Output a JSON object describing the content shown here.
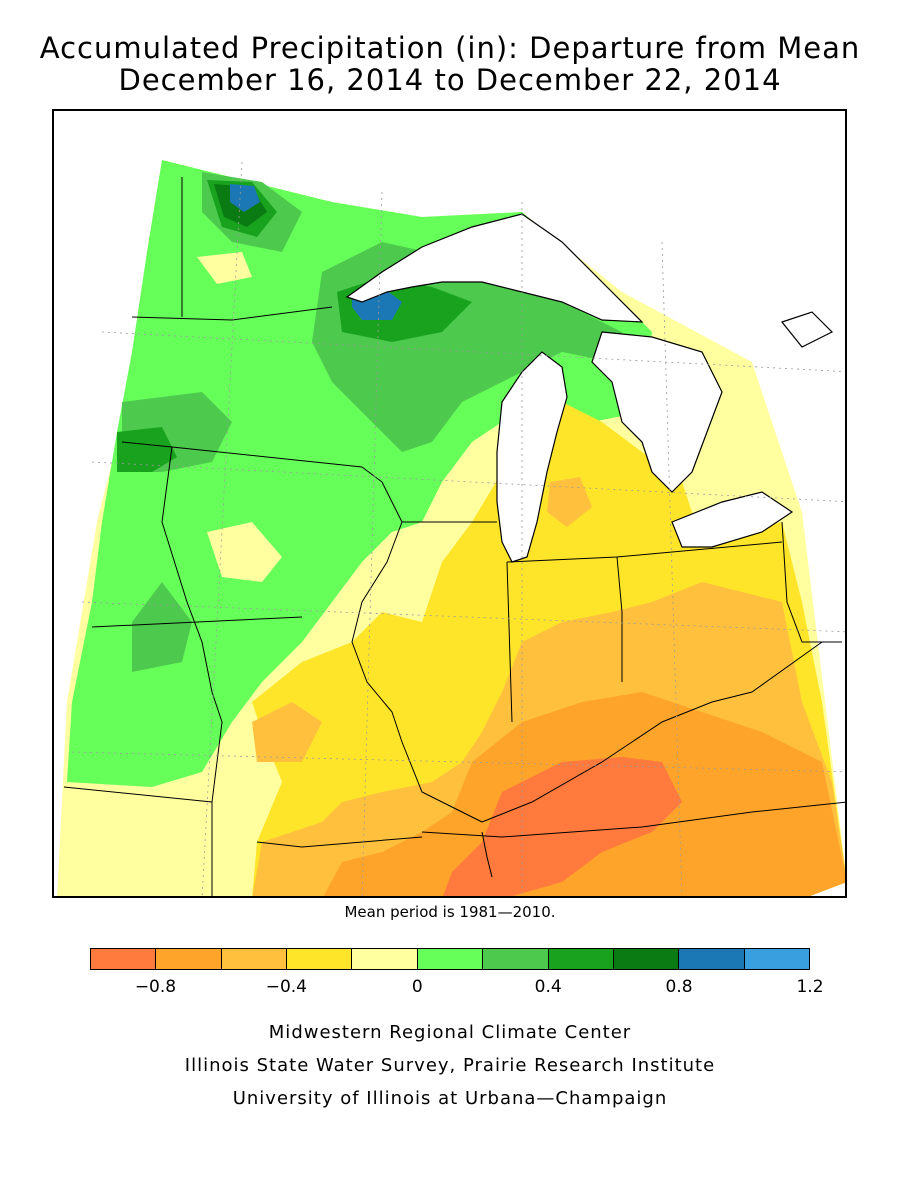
{
  "title": {
    "line1": "Accumulated Precipitation (in): Departure from Mean",
    "line2": "December 16, 2014 to December 22, 2014"
  },
  "mean_note": "Mean period is 1981—2010.",
  "legend": {
    "colors": [
      "#ff7a3c",
      "#ffa42b",
      "#ffc13d",
      "#ffe52a",
      "#ffffa0",
      "#66ff5a",
      "#4dc94d",
      "#18a21e",
      "#0a7a12",
      "#1c78b4",
      "#3a9fdf"
    ],
    "tick_labels": [
      {
        "label": "−0.8",
        "value": -0.8
      },
      {
        "label": "−0.4",
        "value": -0.4
      },
      {
        "label": "0",
        "value": 0
      },
      {
        "label": "0.4",
        "value": 0.4
      },
      {
        "label": "0.8",
        "value": 0.8
      },
      {
        "label": "1.2",
        "value": 1.2
      }
    ],
    "min": -1.0,
    "max": 1.2
  },
  "credits": {
    "line1": "Midwestern Regional Climate Center",
    "line2": "Illinois State Water Survey, Prairie Research Institute",
    "line3": "University of Illinois at Urbana—Champaign"
  }
}
